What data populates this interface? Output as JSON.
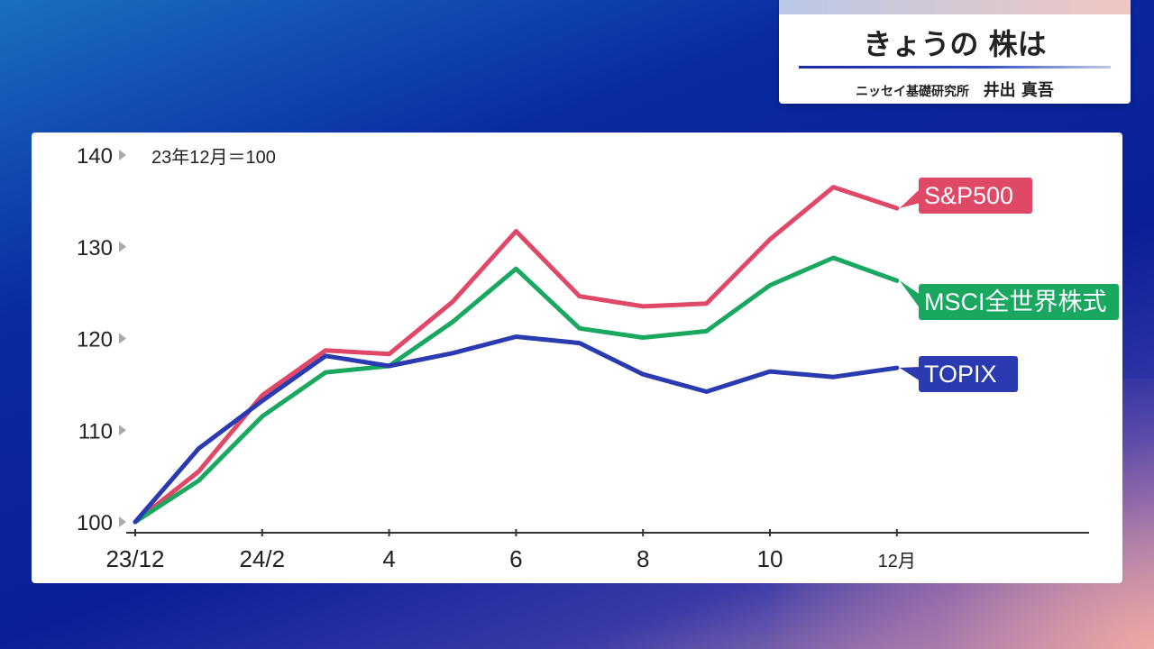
{
  "header": {
    "title": "きょうの 株は",
    "organization": "ニッセイ基礎研究所",
    "person": "井出 真吾"
  },
  "colors": {
    "sp500": "#e04868",
    "msci": "#1aa860",
    "topix": "#2a3ab0"
  },
  "chart_data": {
    "type": "line",
    "note": "23年12月＝100",
    "x": [
      "23/12",
      "24/1",
      "24/2",
      "24/3",
      "24/4",
      "24/5",
      "24/6",
      "24/7",
      "24/8",
      "24/9",
      "24/10",
      "24/11",
      "24/12"
    ],
    "x_tick_labels": [
      "23/12",
      "24/2",
      "4",
      "6",
      "8",
      "10",
      "12月"
    ],
    "y_tick_labels": [
      "140",
      "130",
      "120",
      "110",
      "100"
    ],
    "ylim": [
      100,
      140
    ],
    "series": [
      {
        "name": "S&P500",
        "values": [
          100,
          105.5,
          113.8,
          118.7,
          118.3,
          124.0,
          131.7,
          124.6,
          123.5,
          123.8,
          130.8,
          136.5,
          134.2
        ]
      },
      {
        "name": "MSCI全世界株式",
        "values": [
          100,
          104.5,
          111.5,
          116.3,
          117.0,
          121.8,
          127.6,
          121.1,
          120.1,
          120.8,
          125.8,
          128.8,
          126.3
        ]
      },
      {
        "name": "TOPIX",
        "values": [
          100,
          108.0,
          113.2,
          118.1,
          117.0,
          118.4,
          120.2,
          119.5,
          116.1,
          114.2,
          116.4,
          115.8,
          116.8
        ]
      }
    ]
  }
}
